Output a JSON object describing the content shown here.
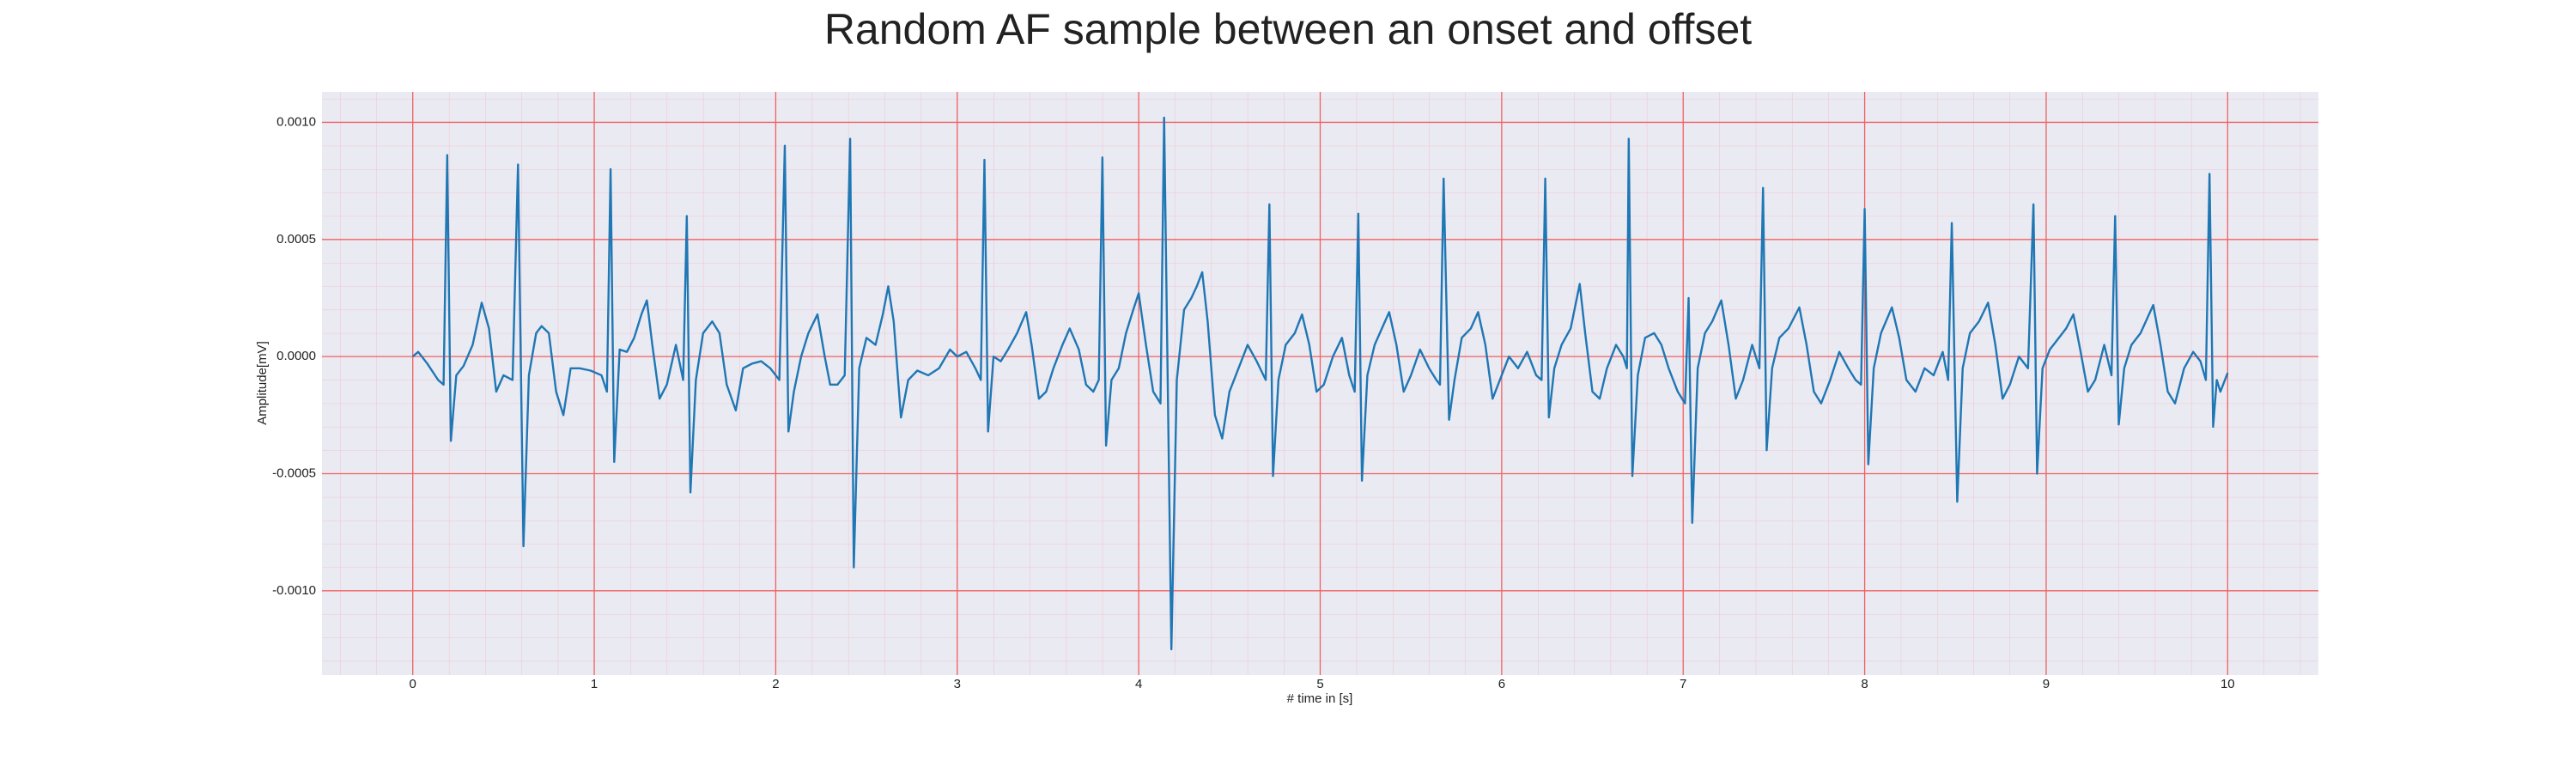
{
  "chart_data": {
    "type": "line",
    "title": "Random AF sample between an onset and offset",
    "x_label": "# time in [s]",
    "y_label": "Amplitude[mV]",
    "color": "#1f77b4",
    "grid": true,
    "xlim": [
      -0.5,
      10.5
    ],
    "ylim": [
      -0.00136,
      0.00113
    ],
    "xticks": [
      0,
      1,
      2,
      3,
      4,
      5,
      6,
      7,
      8,
      9,
      10
    ],
    "yticks": [
      {
        "value": -0.001,
        "label": "-0.0010"
      },
      {
        "value": -0.0005,
        "label": "-0.0005"
      },
      {
        "value": 0,
        "label": "0.0000"
      },
      {
        "value": 0.0005,
        "label": "0.0005"
      },
      {
        "value": 0.001,
        "label": "0.0010"
      }
    ],
    "x": [
      0.0,
      0.03,
      0.08,
      0.14,
      0.17,
      0.19,
      0.21,
      0.24,
      0.28,
      0.33,
      0.38,
      0.42,
      0.46,
      0.5,
      0.55,
      0.58,
      0.61,
      0.64,
      0.68,
      0.71,
      0.75,
      0.79,
      0.83,
      0.87,
      0.92,
      0.98,
      1.04,
      1.07,
      1.09,
      1.11,
      1.14,
      1.18,
      1.22,
      1.26,
      1.29,
      1.32,
      1.36,
      1.4,
      1.45,
      1.49,
      1.51,
      1.53,
      1.56,
      1.6,
      1.65,
      1.69,
      1.73,
      1.78,
      1.82,
      1.87,
      1.92,
      1.97,
      2.02,
      2.05,
      2.07,
      2.1,
      2.14,
      2.18,
      2.23,
      2.27,
      2.3,
      2.34,
      2.38,
      2.41,
      2.43,
      2.46,
      2.5,
      2.55,
      2.59,
      2.62,
      2.65,
      2.69,
      2.73,
      2.78,
      2.84,
      2.9,
      2.96,
      3.0,
      3.05,
      3.1,
      3.13,
      3.15,
      3.17,
      3.2,
      3.24,
      3.28,
      3.33,
      3.38,
      3.41,
      3.45,
      3.49,
      3.53,
      3.58,
      3.62,
      3.67,
      3.71,
      3.75,
      3.78,
      3.8,
      3.82,
      3.85,
      3.89,
      3.93,
      3.97,
      4.0,
      4.04,
      4.08,
      4.12,
      4.14,
      4.18,
      4.21,
      4.25,
      4.29,
      4.32,
      4.35,
      4.38,
      4.42,
      4.46,
      4.5,
      4.55,
      4.6,
      4.65,
      4.7,
      4.72,
      4.74,
      4.77,
      4.81,
      4.86,
      4.9,
      4.94,
      4.98,
      5.02,
      5.07,
      5.12,
      5.16,
      5.19,
      5.21,
      5.23,
      5.26,
      5.3,
      5.34,
      5.38,
      5.42,
      5.46,
      5.5,
      5.55,
      5.6,
      5.64,
      5.66,
      5.68,
      5.71,
      5.74,
      5.78,
      5.83,
      5.87,
      5.91,
      5.95,
      5.99,
      6.04,
      6.09,
      6.14,
      6.19,
      6.22,
      6.24,
      6.26,
      6.29,
      6.33,
      6.38,
      6.43,
      6.46,
      6.5,
      6.54,
      6.58,
      6.63,
      6.67,
      6.69,
      6.7,
      6.72,
      6.75,
      6.79,
      6.84,
      6.88,
      6.92,
      6.97,
      7.01,
      7.03,
      7.05,
      7.08,
      7.12,
      7.16,
      7.21,
      7.25,
      7.29,
      7.33,
      7.38,
      7.42,
      7.44,
      7.46,
      7.49,
      7.53,
      7.58,
      7.64,
      7.68,
      7.72,
      7.76,
      7.81,
      7.86,
      7.91,
      7.95,
      7.98,
      8.0,
      8.02,
      8.05,
      8.09,
      8.15,
      8.19,
      8.23,
      8.28,
      8.33,
      8.38,
      8.43,
      8.46,
      8.48,
      8.51,
      8.54,
      8.58,
      8.63,
      8.68,
      8.72,
      8.76,
      8.8,
      8.85,
      8.9,
      8.93,
      8.95,
      8.98,
      9.02,
      9.07,
      9.11,
      9.15,
      9.19,
      9.23,
      9.27,
      9.32,
      9.36,
      9.38,
      9.4,
      9.43,
      9.47,
      9.52,
      9.59,
      9.63,
      9.67,
      9.71,
      9.76,
      9.81,
      9.85,
      9.88,
      9.9,
      9.92,
      9.94,
      9.96,
      10.0
    ],
    "values": [
      0.0,
      2e-05,
      -3e-05,
      -0.0001,
      -0.00012,
      0.00086,
      -0.00036,
      -8e-05,
      -4e-05,
      5e-05,
      0.00023,
      0.00012,
      -0.00015,
      -8e-05,
      -0.0001,
      0.00082,
      -0.00081,
      -8e-05,
      0.0001,
      0.00013,
      0.0001,
      -0.00015,
      -0.00025,
      -5e-05,
      -5e-05,
      -6e-05,
      -8e-05,
      -0.00015,
      0.0008,
      -0.00045,
      3e-05,
      2e-05,
      8e-05,
      0.00018,
      0.00024,
      5e-05,
      -0.00018,
      -0.00012,
      5e-05,
      -0.0001,
      0.0006,
      -0.00058,
      -0.0001,
      0.0001,
      0.00015,
      0.0001,
      -0.00012,
      -0.00023,
      -5e-05,
      -3e-05,
      -2e-05,
      -5e-05,
      -0.0001,
      0.0009,
      -0.00032,
      -0.00015,
      0.0,
      0.0001,
      0.00018,
      0.0,
      -0.00012,
      -0.00012,
      -8e-05,
      0.00093,
      -0.0009,
      -5e-05,
      8e-05,
      5e-05,
      0.00018,
      0.0003,
      0.00015,
      -0.00026,
      -0.0001,
      -6e-05,
      -8e-05,
      -5e-05,
      3e-05,
      0.0,
      2e-05,
      -5e-05,
      -0.0001,
      0.00084,
      -0.00032,
      0.0,
      -2e-05,
      3e-05,
      0.0001,
      0.00019,
      5e-05,
      -0.00018,
      -0.00015,
      -5e-05,
      5e-05,
      0.00012,
      3e-05,
      -0.00012,
      -0.00015,
      -0.0001,
      0.00085,
      -0.00038,
      -0.0001,
      -5e-05,
      0.0001,
      0.0002,
      0.00027,
      5e-05,
      -0.00015,
      -0.0002,
      0.00102,
      -0.00125,
      -0.0001,
      0.0002,
      0.00025,
      0.0003,
      0.00036,
      0.00015,
      -0.00025,
      -0.00035,
      -0.00015,
      -5e-05,
      5e-05,
      -2e-05,
      -0.0001,
      0.00065,
      -0.00051,
      -0.0001,
      5e-05,
      0.0001,
      0.00018,
      5e-05,
      -0.00015,
      -0.00012,
      0.0,
      8e-05,
      -8e-05,
      -0.00015,
      0.00061,
      -0.00053,
      -8e-05,
      5e-05,
      0.00012,
      0.00019,
      5e-05,
      -0.00015,
      -8e-05,
      3e-05,
      -5e-05,
      -0.0001,
      -0.00012,
      0.00076,
      -0.00027,
      -0.0001,
      8e-05,
      0.00012,
      0.00019,
      5e-05,
      -0.00018,
      -0.0001,
      0.0,
      -5e-05,
      2e-05,
      -8e-05,
      -0.0001,
      0.00076,
      -0.00026,
      -5e-05,
      5e-05,
      0.00012,
      0.00031,
      0.0001,
      -0.00015,
      -0.00018,
      -5e-05,
      5e-05,
      0.0,
      -5e-05,
      0.00093,
      -0.00051,
      -8e-05,
      8e-05,
      0.0001,
      5e-05,
      -5e-05,
      -0.00015,
      -0.0002,
      0.00025,
      -0.00071,
      -5e-05,
      0.0001,
      0.00015,
      0.00024,
      5e-05,
      -0.00018,
      -0.0001,
      5e-05,
      -5e-05,
      0.00072,
      -0.0004,
      -5e-05,
      8e-05,
      0.00012,
      0.00021,
      5e-05,
      -0.00015,
      -0.0002,
      -0.0001,
      2e-05,
      -5e-05,
      -0.0001,
      -0.00012,
      0.00063,
      -0.00046,
      -5e-05,
      0.0001,
      0.00021,
      8e-05,
      -0.0001,
      -0.00015,
      -5e-05,
      -8e-05,
      2e-05,
      -0.0001,
      0.00057,
      -0.00062,
      -5e-05,
      0.0001,
      0.00015,
      0.00023,
      5e-05,
      -0.00018,
      -0.00012,
      0.0,
      -5e-05,
      0.00065,
      -0.0005,
      -5e-05,
      3e-05,
      8e-05,
      0.00012,
      0.00018,
      2e-05,
      -0.00015,
      -0.0001,
      5e-05,
      -8e-05,
      0.0006,
      -0.00029,
      -5e-05,
      5e-05,
      0.0001,
      0.00022,
      5e-05,
      -0.00015,
      -0.0002,
      -5e-05,
      2e-05,
      -2e-05,
      -0.0001,
      0.00078,
      -0.0003,
      -0.0001,
      -0.00015,
      -7e-05
    ]
  }
}
